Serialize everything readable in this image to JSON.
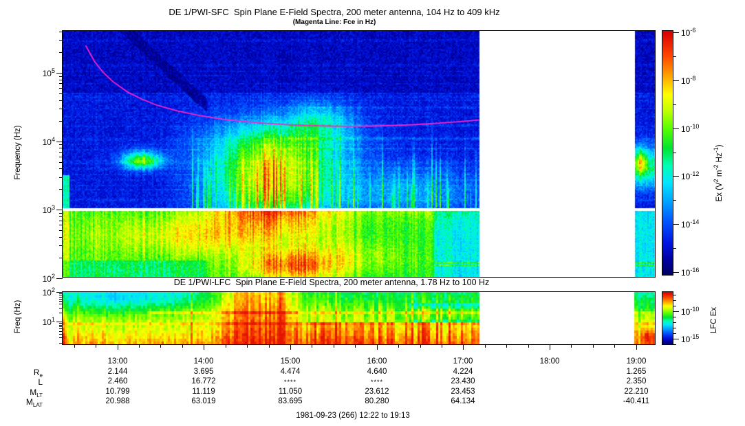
{
  "figure": {
    "caption": "1981-09-23 (266) 12:22 to 19:13"
  },
  "chart_data": [
    {
      "type": "heatmap",
      "panel": "SFC",
      "title": "DE 1/PWI-SFC  Spin Plane E-Field Spectra, 200 meter antenna, 104 Hz to 409 kHz",
      "subtitle": "(Magenta Line: Fce in Hz)",
      "ylabel": "Frequency (Hz)",
      "y_scale": "log",
      "y_range_hz": [
        104,
        409000
      ],
      "y_tick_exponents": [
        5,
        4,
        3,
        2
      ],
      "x_start": "12:22",
      "x_end": "19:13",
      "x_tick_labels": [
        "13:00",
        "14:00",
        "15:00",
        "16:00",
        "17:00",
        "18:00",
        "19:00"
      ],
      "data_gap": [
        "17:11",
        "18:59"
      ],
      "white_separator_hz": 1000,
      "colorbar": {
        "label": "Ex (V^2 m^-2 Hz^-1)",
        "label_parts": [
          {
            "t": "Ex (V"
          },
          {
            "t": "2",
            "sup": true
          },
          {
            "t": " m"
          },
          {
            "t": "-2",
            "sup": true
          },
          {
            "t": " Hz"
          },
          {
            "t": "-1",
            "sup": true
          },
          {
            "t": ")"
          }
        ],
        "scale": "log",
        "range": [
          1e-16,
          1e-06
        ],
        "tick_exponents": [
          -6,
          -8,
          -10,
          -12,
          -14,
          -16
        ]
      },
      "fce_line": {
        "color": "#ff22cc",
        "description": "Electron cyclotron frequency; starts ~250 kHz at 12:38, minimum ~17 kHz near 15:40, rises to ~20 kHz at 17:11 data gap",
        "points": [
          [
            16,
            5.4
          ],
          [
            22,
            5.17
          ],
          [
            28,
            5.01
          ],
          [
            35,
            4.87
          ],
          [
            45,
            4.72
          ],
          [
            55,
            4.615
          ],
          [
            65,
            4.53
          ],
          [
            80,
            4.44
          ],
          [
            95,
            4.375
          ],
          [
            110,
            4.325
          ],
          [
            125,
            4.29
          ],
          [
            140,
            4.262
          ],
          [
            155,
            4.243
          ],
          [
            170,
            4.229
          ],
          [
            185,
            4.221
          ],
          [
            200,
            4.218
          ],
          [
            215,
            4.221
          ],
          [
            230,
            4.23
          ],
          [
            245,
            4.244
          ],
          [
            260,
            4.263
          ],
          [
            275,
            4.286
          ],
          [
            289,
            4.31
          ]
        ]
      },
      "features": {
        "gap_min": [
          289,
          397
        ],
        "white_band": {
          "f": 3.0,
          "hw": 0.028
        },
        "background": {
          "base": 0.13,
          "dark_above": 4.7
        },
        "low_band": {
          "fmax": 3.0,
          "base": 0.52,
          "early_boost": 0.05,
          "early_until": 200,
          "dim_after": 258,
          "dim": -0.13
        },
        "streaks": {
          "m0": 90,
          "m1": 289,
          "p_early": 0.35,
          "p_late": 0.2,
          "m_split": 200,
          "amp": 0.25
        },
        "funnel": {
          "m0": 40,
          "m1": 100,
          "mref": 48,
          "fref": 5.55,
          "slope": 0.0198,
          "w": 0.1,
          "v": 0.055
        },
        "strip_band": {
          "f": 3.62,
          "df": 0.3,
          "a": 0.35
        },
        "blobs": [
          {
            "t": 95,
            "dt": 75,
            "f": 2.62,
            "df": 0.3,
            "a": 0.16
          },
          {
            "t": 158,
            "dt": 30,
            "f": 2.18,
            "df": 0.22,
            "a": 0.3
          },
          {
            "t": 210,
            "dt": 40,
            "f": 2.3,
            "df": 0.3,
            "a": 0.12
          },
          {
            "t": 55,
            "dt": 14,
            "f": 3.72,
            "df": 0.13,
            "a": 0.48
          },
          {
            "t": 145,
            "dt": 40,
            "f": 3.35,
            "df": 0.55,
            "a": 0.52
          },
          {
            "t": 150,
            "dt": 48,
            "f": 3.95,
            "df": 0.45,
            "a": 0.32
          },
          {
            "t": 180,
            "dt": 22,
            "f": 4.3,
            "df": 0.28,
            "a": 0.18
          },
          {
            "t": 240,
            "dt": 55,
            "f": 3.25,
            "df": 0.4,
            "a": 0.18
          },
          {
            "t": 401,
            "dt": 4,
            "f": 3.7,
            "df": 0.18,
            "a": 0.3
          }
        ]
      }
    },
    {
      "type": "heatmap",
      "panel": "LFC",
      "title": "DE 1/PWI-LFC  Spin Plane E-Field Spectra, 200 meter antenna, 1.78 Hz to 100 Hz",
      "ylabel": "Freq (Hz)",
      "y_scale": "log",
      "y_range_hz": [
        1.78,
        100
      ],
      "y_tick_exponents": [
        2,
        1
      ],
      "data_gap": [
        "17:11",
        "18:59"
      ],
      "colorbar": {
        "label": "LFC Ex",
        "scale": "log",
        "tick_exponents": [
          -10,
          -15
        ]
      },
      "features": {
        "gap_min": [
          289,
          397
        ],
        "base": {
          "top": 0.5,
          "grad": 0.17
        },
        "red_block": {
          "t": 137,
          "dt": 24,
          "base": 0.78,
          "grad": 0.1
        },
        "bottom_boost": {
          "m0": 160,
          "m1": 292,
          "fmax": 0.95,
          "a": 0.1
        },
        "blobs": [
          {
            "t": 28,
            "dt": 38,
            "f": 1.75,
            "df": 0.45,
            "a": -0.13
          },
          {
            "t": 75,
            "dt": 40,
            "f": 1.8,
            "df": 0.3,
            "a": -0.08
          },
          {
            "t": 408,
            "dt": 8,
            "f": 0.5,
            "df": 0.3,
            "a": 0.15
          }
        ]
      }
    }
  ],
  "time_axis": {
    "start": "12:22",
    "end": "19:13",
    "total_minutes": 411,
    "minor_tick_every_min": 15,
    "first_minor_min": 8,
    "hour_ticks": [
      {
        "label": "13:00",
        "min": 38
      },
      {
        "label": "14:00",
        "min": 98
      },
      {
        "label": "15:00",
        "min": 158
      },
      {
        "label": "16:00",
        "min": 218
      },
      {
        "label": "17:00",
        "min": 278
      },
      {
        "label": "18:00",
        "min": 338
      },
      {
        "label": "19:00",
        "min": 398
      }
    ]
  },
  "ephemeris": {
    "columns": [
      "13:00",
      "14:00",
      "15:00",
      "16:00",
      "17:00",
      "18:00",
      "19:00"
    ],
    "rows": [
      {
        "key": "Re",
        "main": "R",
        "sub": "e",
        "values": [
          "2.144",
          "3.695",
          "4.474",
          "4.640",
          "4.224",
          "",
          "1.265"
        ]
      },
      {
        "key": "L",
        "main": "L",
        "sub": "",
        "values": [
          "2.460",
          "16.772",
          "****",
          "****",
          "23.430",
          "",
          "2.350"
        ]
      },
      {
        "key": "MLT",
        "main": "M",
        "sub": "LT",
        "values": [
          "10.799",
          "11.119",
          "11.050",
          "23.612",
          "23.453",
          "",
          "22.210"
        ]
      },
      {
        "key": "MLAT",
        "main": "M",
        "sub": "LAT",
        "values": [
          "20.988",
          "63.019",
          "83.695",
          "80.280",
          "64.134",
          "",
          "-40.411"
        ]
      }
    ]
  },
  "colors": {
    "background": "#ffffff",
    "axis": "#000000",
    "fce": "#ff22cc",
    "colormap_stops": [
      [
        0.0,
        "#000060"
      ],
      [
        0.06,
        "#0000a0"
      ],
      [
        0.13,
        "#0014e1"
      ],
      [
        0.22,
        "#0055ff"
      ],
      [
        0.3,
        "#00a2ff"
      ],
      [
        0.38,
        "#00e6ff"
      ],
      [
        0.45,
        "#00ffb4"
      ],
      [
        0.52,
        "#00e632"
      ],
      [
        0.6,
        "#55ff00"
      ],
      [
        0.68,
        "#c8ff00"
      ],
      [
        0.74,
        "#ffff00"
      ],
      [
        0.82,
        "#ffa000"
      ],
      [
        0.9,
        "#ff4600"
      ],
      [
        1.0,
        "#d80000"
      ]
    ]
  }
}
